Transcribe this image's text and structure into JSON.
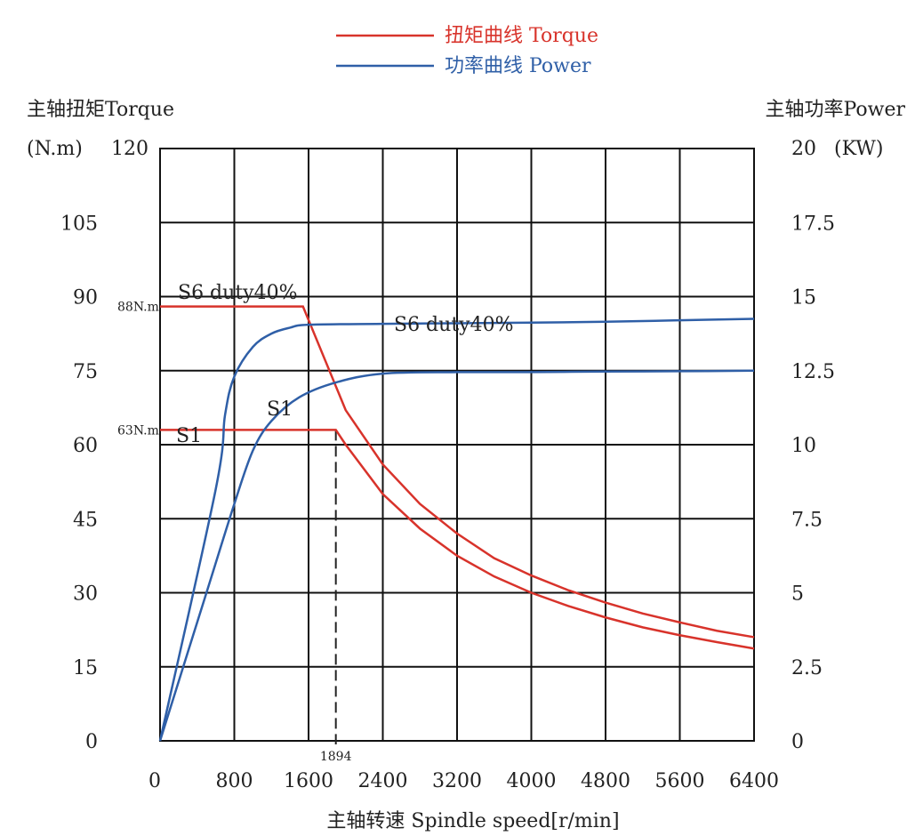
{
  "chart_data": {
    "type": "line",
    "legend": {
      "placement": "top-center",
      "entries": [
        {
          "label": "扭矩曲线 Torque",
          "color": "#d8332b"
        },
        {
          "label": "功率曲线 Power",
          "color": "#2f5fa7"
        }
      ]
    },
    "x_axis": {
      "label": "主轴转速 Spindle speed[r/min]",
      "min": 0,
      "max": 6400,
      "ticks": [
        "0",
        "800",
        "1600",
        "2400",
        "3200",
        "4000",
        "4800",
        "5600",
        "6400"
      ]
    },
    "y_left": {
      "label": "主轴扭矩Torque",
      "unit": "(N.m)",
      "min": 0,
      "max": 120,
      "ticks": [
        "0",
        "15",
        "30",
        "45",
        "60",
        "75",
        "90",
        "105",
        "120"
      ]
    },
    "y_right": {
      "label": "主轴功率Power",
      "unit": "(KW)",
      "min": 0,
      "max": 20,
      "ticks": [
        "0",
        "2.5",
        "5",
        "7.5",
        "10",
        "12.5",
        "15",
        "17.5",
        "20"
      ]
    },
    "grid": true,
    "series": [
      {
        "name": "S6 duty40%",
        "kind": "torque",
        "axis": "left",
        "color": "#d8332b",
        "points": [
          [
            0,
            88
          ],
          [
            1540,
            88
          ],
          [
            2000,
            67
          ],
          [
            2400,
            56
          ],
          [
            2800,
            48
          ],
          [
            3200,
            42
          ],
          [
            3600,
            37
          ],
          [
            4000,
            33.5
          ],
          [
            4400,
            30.5
          ],
          [
            4800,
            28
          ],
          [
            5200,
            25.8
          ],
          [
            5600,
            24
          ],
          [
            6000,
            22.3
          ],
          [
            6400,
            21
          ]
        ]
      },
      {
        "name": "S1",
        "kind": "torque",
        "axis": "left",
        "color": "#d8332b",
        "points": [
          [
            0,
            63
          ],
          [
            1894,
            63
          ],
          [
            2000,
            60
          ],
          [
            2400,
            50
          ],
          [
            2800,
            43
          ],
          [
            3200,
            37.5
          ],
          [
            3600,
            33.3
          ],
          [
            4000,
            30
          ],
          [
            4400,
            27.3
          ],
          [
            4800,
            25
          ],
          [
            5200,
            23
          ],
          [
            5600,
            21.4
          ],
          [
            6000,
            20
          ],
          [
            6400,
            18.7
          ]
        ]
      },
      {
        "name": "S6 duty40%",
        "kind": "power",
        "axis": "right",
        "color": "#2f5fa7",
        "points": [
          [
            0,
            0
          ],
          [
            600,
            8.5
          ],
          [
            700,
            11
          ],
          [
            800,
            12.3
          ],
          [
            1000,
            13.3
          ],
          [
            1200,
            13.75
          ],
          [
            1400,
            13.95
          ],
          [
            1600,
            14.05
          ],
          [
            2400,
            14.08
          ],
          [
            3200,
            14.1
          ],
          [
            4000,
            14.12
          ],
          [
            4800,
            14.15
          ],
          [
            5600,
            14.2
          ],
          [
            6400,
            14.25
          ]
        ]
      },
      {
        "name": "S1",
        "kind": "power",
        "axis": "right",
        "color": "#2f5fa7",
        "points": [
          [
            0,
            0
          ],
          [
            500,
            5
          ],
          [
            800,
            8
          ],
          [
            1000,
            9.8
          ],
          [
            1200,
            10.8
          ],
          [
            1500,
            11.6
          ],
          [
            1894,
            12.1
          ],
          [
            2400,
            12.4
          ],
          [
            3200,
            12.45
          ],
          [
            4000,
            12.45
          ],
          [
            4800,
            12.47
          ],
          [
            5600,
            12.48
          ],
          [
            6400,
            12.5
          ]
        ]
      }
    ],
    "annotations": [
      {
        "text": "88N.m",
        "x": 0,
        "y": 88,
        "axis": "left",
        "role": "point-label"
      },
      {
        "text": "63N.m",
        "x": 0,
        "y": 63,
        "axis": "left",
        "role": "point-label"
      },
      {
        "text": "1894",
        "x": 1894,
        "y": 0,
        "axis": "left",
        "role": "point-label"
      },
      {
        "text": "S6 duty40%",
        "role": "torque-series-label"
      },
      {
        "text": "S1",
        "role": "torque-series-label"
      },
      {
        "text": "S6 duty40%",
        "role": "power-series-label"
      },
      {
        "text": "S1",
        "role": "power-series-label"
      }
    ],
    "dashed_marker": {
      "x": 1894,
      "from_y": 0,
      "to_y": 63,
      "axis": "left"
    }
  }
}
